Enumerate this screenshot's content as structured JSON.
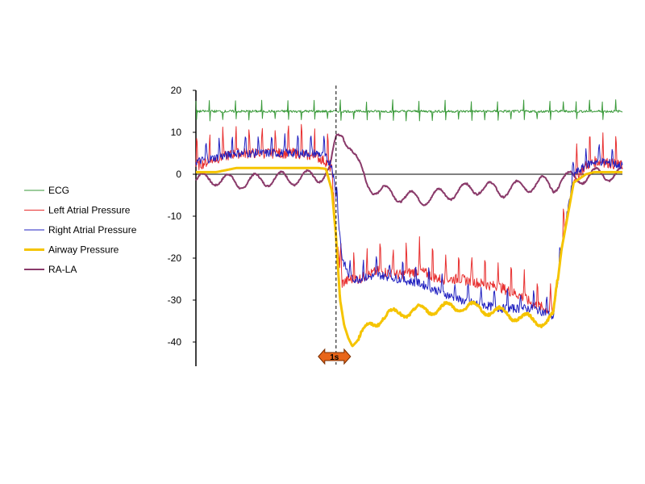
{
  "chart_data": {
    "type": "line",
    "title": "",
    "xlabel": "",
    "ylabel": "",
    "ylim": [
      -45,
      20
    ],
    "xlim": [
      0,
      10.5
    ],
    "yticks": [
      20,
      10,
      0,
      -10,
      -20,
      -30,
      -40
    ],
    "y_tick_labels": [
      "20",
      "10",
      "0",
      "-10",
      "-20",
      "-30",
      "-40"
    ],
    "grid": false,
    "legend_position": "left",
    "time_marker": {
      "label": "1s",
      "x": 3.45,
      "color": "#e8661a"
    },
    "series": [
      {
        "name": "ECG",
        "color": "#3a9a3a",
        "width": 1,
        "x": [
          0,
          10.5
        ],
        "y": [
          15,
          15
        ]
      },
      {
        "name": "Left Atrial Pressure",
        "color": "#e83030",
        "width": 1,
        "x": [
          0,
          0.3,
          0.6,
          1.0,
          1.5,
          2.0,
          2.5,
          3.0,
          3.2,
          3.35,
          3.45,
          3.6,
          3.8,
          4.0,
          4.5,
          5.0,
          5.5,
          6.0,
          6.5,
          7.0,
          7.5,
          8.0,
          8.3,
          8.6,
          8.8,
          9.0,
          9.3,
          9.6,
          9.8,
          10.0,
          10.5
        ],
        "y": [
          2,
          3,
          4,
          5,
          5,
          5,
          5,
          4,
          3,
          1,
          -15,
          -26,
          -25,
          -25,
          -23,
          -24,
          -23,
          -25,
          -25,
          -26,
          -27,
          -29,
          -31,
          -32,
          -33,
          -18,
          -1,
          2,
          3,
          3,
          2
        ]
      },
      {
        "name": "Right Atrial Pressure",
        "color": "#2020c0",
        "width": 1,
        "x": [
          0,
          0.5,
          1.0,
          1.5,
          2.0,
          2.5,
          3.0,
          3.2,
          3.35,
          3.45,
          3.6,
          3.8,
          4.0,
          4.5,
          5.0,
          5.5,
          6.0,
          6.5,
          7.0,
          7.5,
          8.0,
          8.3,
          8.6,
          8.8,
          9.0,
          9.3,
          9.6,
          9.8,
          10.0,
          10.5
        ],
        "y": [
          3,
          4,
          5,
          5,
          5,
          5,
          5,
          4,
          2,
          -5,
          -20,
          -25,
          -25,
          -24,
          -25,
          -26,
          -28,
          -30,
          -31,
          -32,
          -32,
          -32,
          -33,
          -34,
          -18,
          0,
          2,
          3,
          3,
          2
        ]
      },
      {
        "name": "Airway Pressure",
        "color": "#f5c400",
        "width": 3,
        "x": [
          0,
          0.5,
          1.0,
          1.5,
          2.0,
          2.5,
          3.0,
          3.2,
          3.35,
          3.45,
          3.55,
          3.65,
          3.75,
          3.85,
          3.95,
          4.1,
          4.3,
          4.6,
          5.0,
          5.5,
          6.0,
          6.5,
          7.0,
          7.5,
          8.0,
          8.3,
          8.6,
          8.8,
          9.0,
          9.3,
          9.6,
          9.8,
          10.0,
          10.5
        ],
        "y": [
          0.5,
          0.5,
          1.5,
          1.5,
          1.5,
          1.5,
          1.5,
          1.3,
          -4,
          -15,
          -30,
          -36,
          -39,
          -41,
          -40,
          -38,
          -36,
          -34,
          -33,
          -32.5,
          -32,
          -31.5,
          -32,
          -33,
          -34,
          -35,
          -35,
          -34,
          -18,
          -2,
          0,
          0.5,
          0.5,
          0.5
        ]
      },
      {
        "name": "RA-LA",
        "color": "#8a3a6a",
        "width": 2,
        "x": [
          0,
          0.5,
          1.0,
          1.5,
          2.0,
          2.5,
          3.0,
          3.3,
          3.45,
          3.6,
          3.8,
          4.0,
          4.2,
          4.5,
          5.0,
          5.5,
          6.0,
          6.5,
          7.0,
          7.5,
          8.0,
          8.5,
          8.8,
          9.0,
          9.3,
          9.6,
          10.0,
          10.5
        ],
        "y": [
          -1.5,
          -1,
          -2,
          -1.5,
          -1,
          -1,
          -0.5,
          1,
          8,
          10,
          7,
          2,
          -2,
          -4,
          -5,
          -6,
          -5,
          -4,
          -3,
          -4,
          -3,
          -2,
          -3,
          -1,
          -1,
          -0.5,
          0,
          0
        ]
      }
    ]
  }
}
